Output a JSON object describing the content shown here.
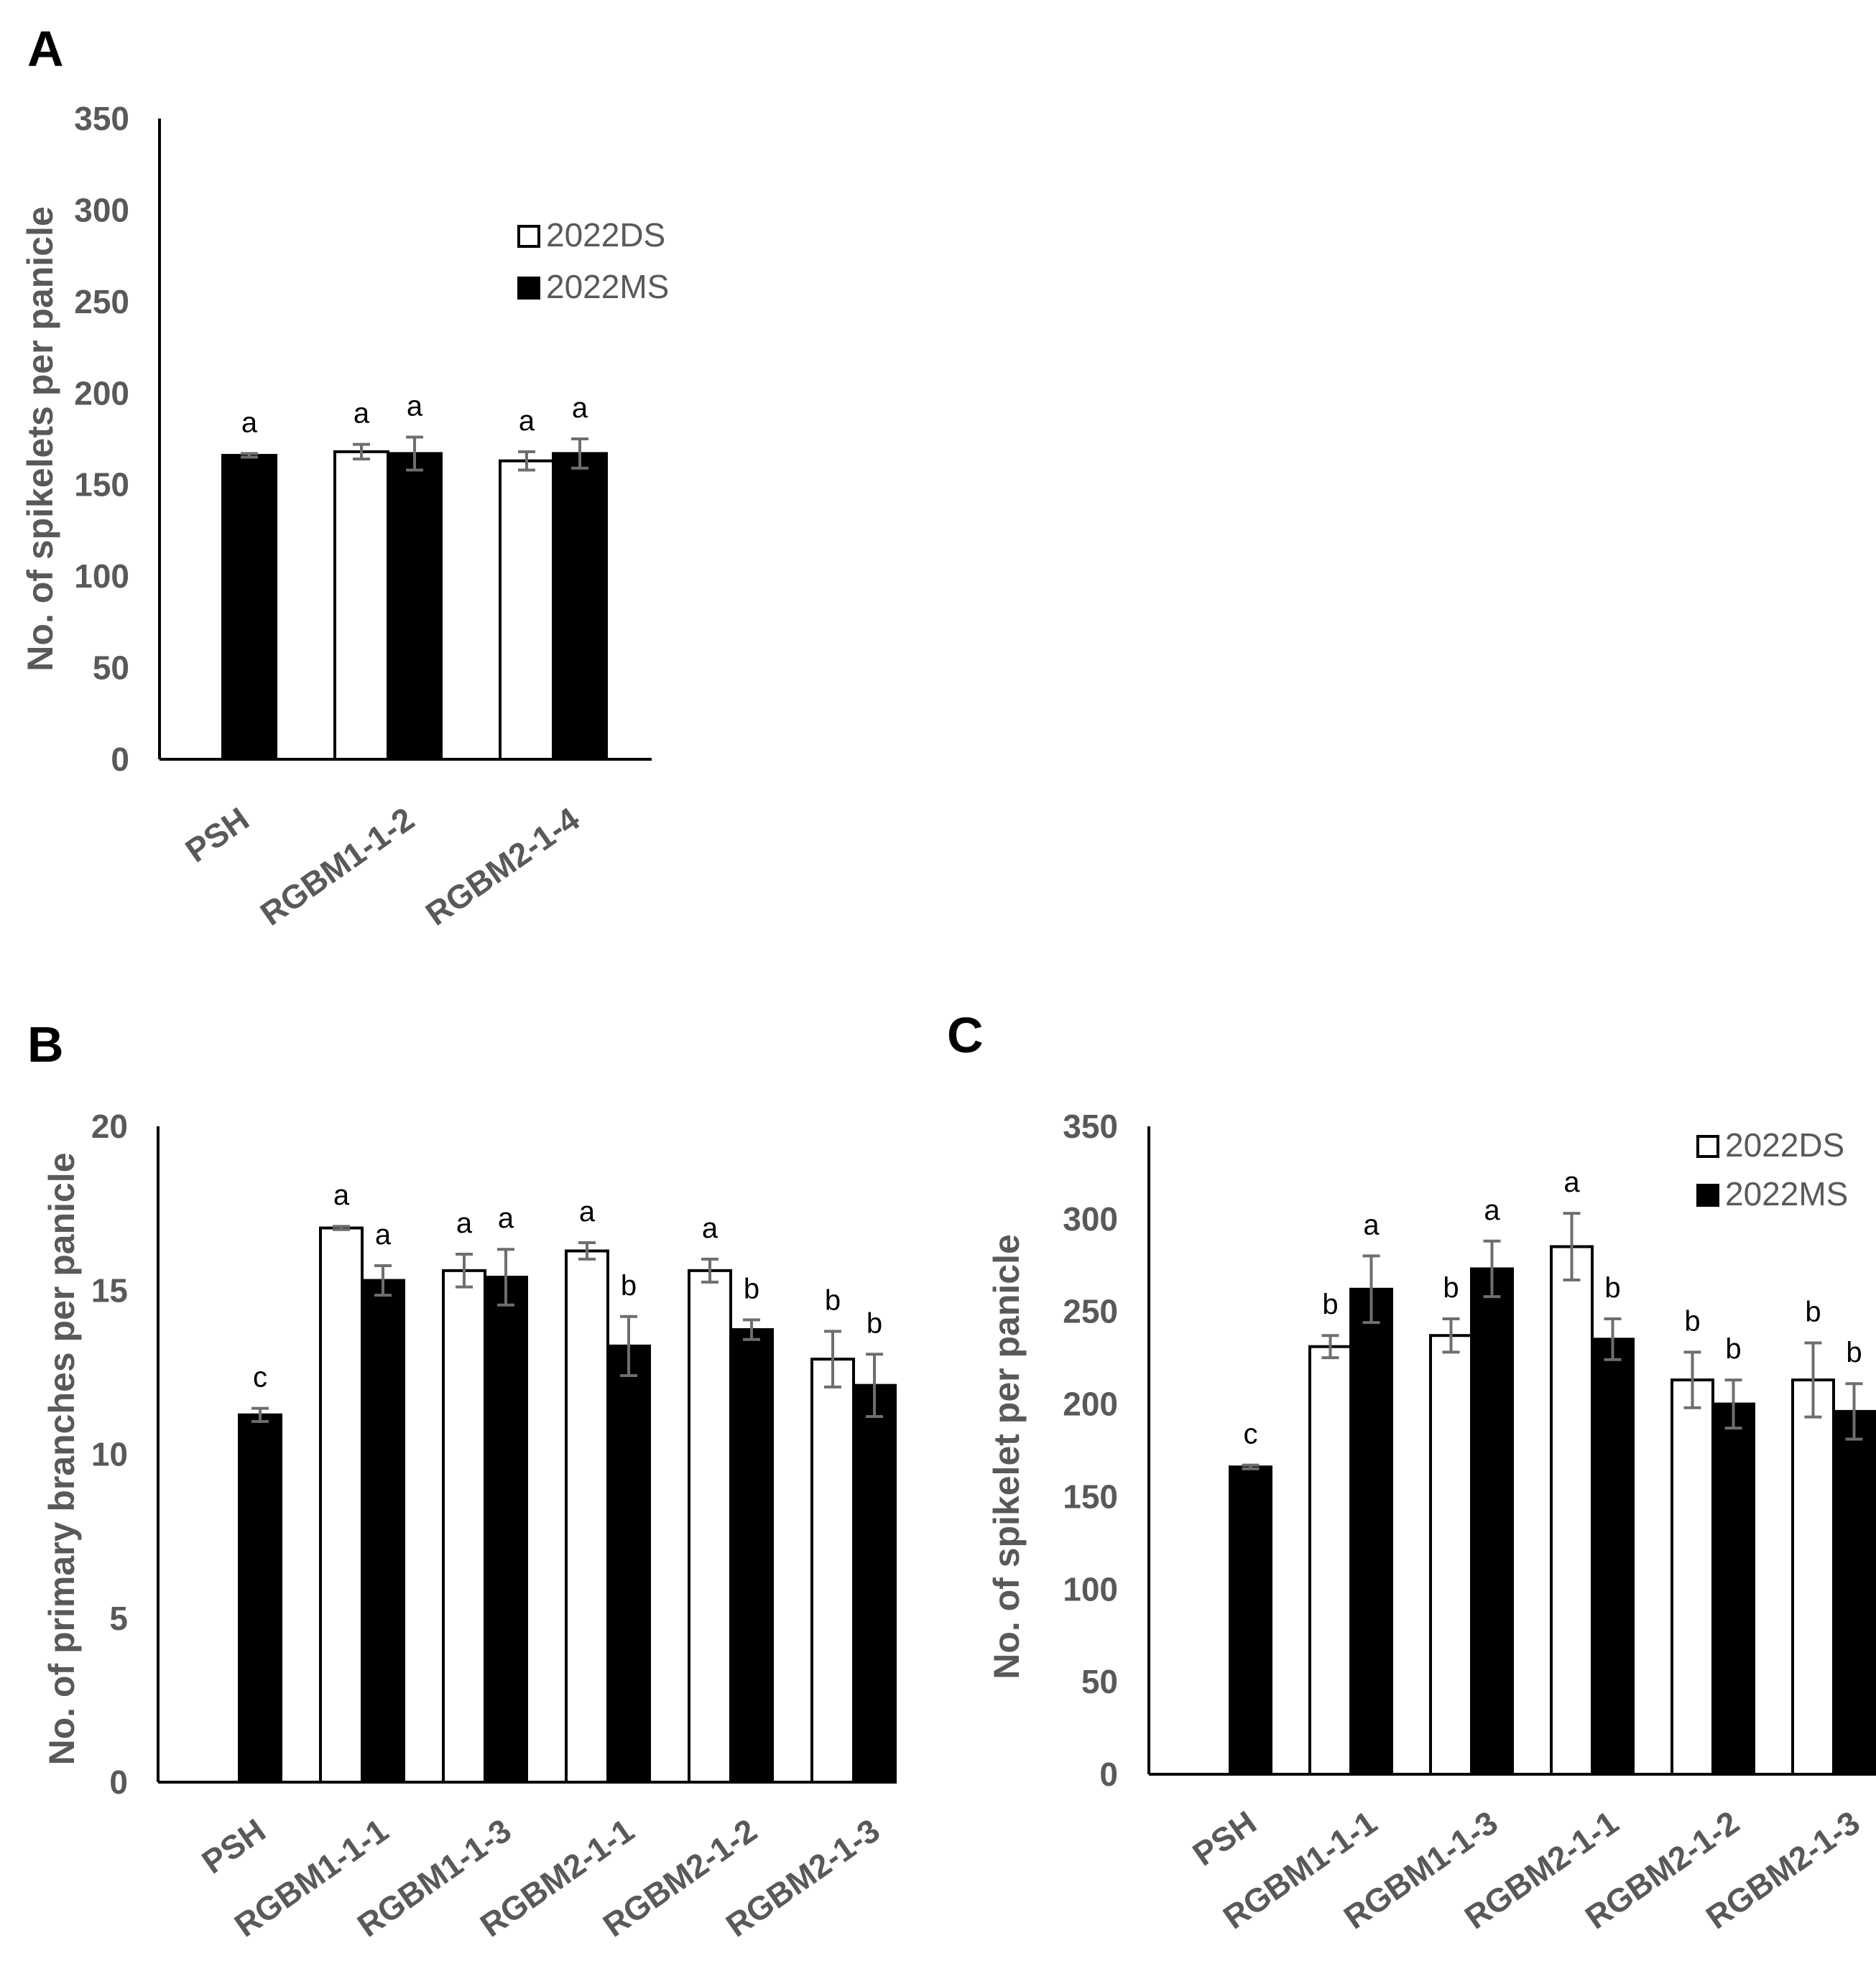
{
  "chart_data": [
    {
      "panel": "A",
      "type": "bar",
      "title": "",
      "xlabel": "",
      "ylabel": "No. of spikelets per panicle",
      "ylim": [
        0,
        350
      ],
      "yticks": [
        0,
        50,
        100,
        150,
        200,
        250,
        300,
        350
      ],
      "grid": false,
      "legend": "inside top-right",
      "categories": [
        "PSH",
        "RGBM1-1-2",
        "RGBM2-1-4"
      ],
      "series": [
        {
          "name": "2022DS",
          "fill": "#ffffff",
          "values": [
            null,
            168,
            163
          ],
          "errors": [
            null,
            4,
            5
          ],
          "letters": [
            null,
            "a",
            "a"
          ]
        },
        {
          "name": "2022MS",
          "fill": "#000000",
          "values": [
            166,
            167,
            167
          ],
          "errors": [
            1,
            9,
            8
          ],
          "letters": [
            "a",
            "a",
            "a"
          ]
        }
      ]
    },
    {
      "panel": "B",
      "type": "bar",
      "title": "",
      "xlabel": "",
      "ylabel": "No. of primary branches per panicle",
      "ylim": [
        0,
        20
      ],
      "yticks": [
        0,
        5,
        10,
        15,
        20
      ],
      "grid": false,
      "legend": "none",
      "categories": [
        "PSH",
        "RGBM1-1-1",
        "RGBM1-1-3",
        "RGBM2-1-1",
        "RGBM2-1-2",
        "RGBM2-1-3"
      ],
      "series": [
        {
          "name": "2022DS",
          "fill": "#ffffff",
          "values": [
            null,
            16.9,
            15.6,
            16.2,
            15.6,
            12.9
          ],
          "errors": [
            null,
            0.05,
            0.5,
            0.25,
            0.35,
            0.85
          ],
          "letters": [
            null,
            "a",
            "a",
            "a",
            "a",
            "b"
          ]
        },
        {
          "name": "2022MS",
          "fill": "#000000",
          "values": [
            11.2,
            15.3,
            15.4,
            13.3,
            13.8,
            12.1
          ],
          "errors": [
            0.2,
            0.45,
            0.85,
            0.9,
            0.3,
            0.95
          ],
          "letters": [
            "c",
            "a",
            "a",
            "b",
            "b",
            "b"
          ]
        }
      ]
    },
    {
      "panel": "C",
      "type": "bar",
      "title": "",
      "xlabel": "",
      "ylabel": "No. of spikelet per panicle",
      "ylim": [
        0,
        350
      ],
      "yticks": [
        0,
        50,
        100,
        150,
        200,
        250,
        300,
        350
      ],
      "grid": false,
      "legend": "top-right",
      "categories": [
        "PSH",
        "RGBM1-1-1",
        "RGBM1-1-3",
        "RGBM2-1-1",
        "RGBM2-1-2",
        "RGBM2-1-3"
      ],
      "series": [
        {
          "name": "2022DS",
          "fill": "#ffffff",
          "values": [
            null,
            231,
            237,
            285,
            213,
            213
          ],
          "errors": [
            null,
            6,
            9,
            18,
            15,
            20
          ],
          "letters": [
            null,
            "b",
            "b",
            "a",
            "b",
            "b"
          ]
        },
        {
          "name": "2022MS",
          "fill": "#000000",
          "values": [
            166,
            262,
            273,
            235,
            200,
            196
          ],
          "errors": [
            1,
            18,
            15,
            11,
            13,
            15
          ],
          "letters": [
            "c",
            "a",
            "a",
            "b",
            "b",
            "b"
          ]
        }
      ]
    }
  ]
}
